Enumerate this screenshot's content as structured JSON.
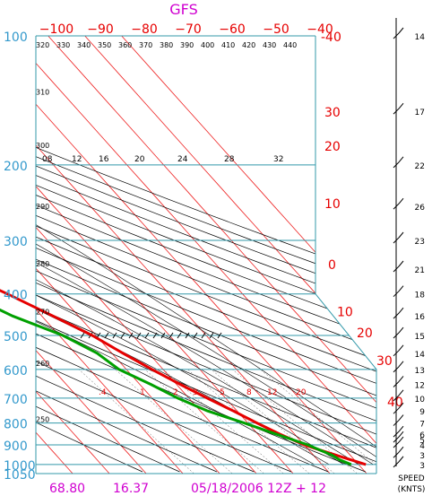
{
  "chart_data": {
    "type": "line",
    "title": "GFS",
    "top_temp_labels": [
      "−100",
      "−90",
      "−80",
      "−70",
      "−60",
      "−50",
      "−40"
    ],
    "top_temp_values": [
      -100,
      -90,
      -80,
      -70,
      -60,
      -50,
      -40
    ],
    "pressure_levels": [
      100,
      200,
      300,
      400,
      500,
      600,
      700,
      800,
      900,
      1000,
      1050
    ],
    "pressure_labels": [
      "100",
      "200",
      "300",
      "400",
      "500",
      "600",
      "700",
      "800",
      "900",
      "1000",
      "1050"
    ],
    "right_temp_labels": [
      {
        "text": "-40",
        "p": 100
      },
      {
        "text": "30",
        "p": 150
      },
      {
        "text": "20",
        "p": 180
      },
      {
        "text": "10",
        "p": 245
      },
      {
        "text": "0",
        "p": 340
      },
      {
        "text": "10",
        "p": 438
      },
      {
        "text": "20",
        "p": 490
      },
      {
        "text": "30",
        "p": 570
      },
      {
        "text": "40",
        "p": 710
      }
    ],
    "theta_labels": [
      {
        "text": "320",
        "p": 105
      },
      {
        "text": "330",
        "p": 105
      },
      {
        "text": "340",
        "p": 105
      },
      {
        "text": "350",
        "p": 105
      },
      {
        "text": "360",
        "p": 105
      },
      {
        "text": "370",
        "p": 105
      },
      {
        "text": "380",
        "p": 105
      },
      {
        "text": "390",
        "p": 105
      },
      {
        "text": "400",
        "p": 105
      },
      {
        "text": "410",
        "p": 105
      },
      {
        "text": "420",
        "p": 105
      },
      {
        "text": "430",
        "p": 105
      },
      {
        "text": "440",
        "p": 105
      }
    ],
    "theta_left_labels": [
      {
        "text": "310",
        "p": 135
      },
      {
        "text": "300",
        "p": 180
      },
      {
        "text": "290",
        "p": 250
      },
      {
        "text": "280",
        "p": 340
      },
      {
        "text": "270",
        "p": 440
      },
      {
        "text": "260",
        "p": 580
      },
      {
        "text": "250",
        "p": 785
      }
    ],
    "theta_e_labels": [
      "08",
      "12",
      "16",
      "20",
      "24",
      "28",
      "32"
    ],
    "mixing_ratio_labels": [
      ".4",
      "1",
      "2",
      "3",
      "5",
      "8",
      "12",
      "20"
    ],
    "temperature": {
      "name": "Temperature",
      "color": "#e60000",
      "p": [
        1000,
        975,
        950,
        925,
        900,
        850,
        800,
        750,
        700,
        650,
        600,
        550,
        500,
        450,
        400,
        370,
        340,
        320,
        300,
        280,
        260,
        240,
        220,
        200,
        180,
        160,
        140,
        120,
        100
      ],
      "t": [
        22,
        19,
        16,
        13,
        10,
        6,
        2.5,
        -1,
        -5,
        -9,
        -13,
        -17,
        -21,
        -27,
        -34,
        -39,
        -44,
        -48,
        -50,
        -51,
        -53,
        -54,
        -55,
        -57,
        -58,
        -60,
        -62,
        -63,
        -64
      ]
    },
    "dewpoint": {
      "name": "Dewpoint",
      "color": "#00a000",
      "p": [
        1000,
        975,
        950,
        925,
        900,
        850,
        800,
        750,
        700,
        650,
        600,
        550,
        500,
        450,
        400,
        350,
        320,
        300,
        280,
        260,
        240,
        220,
        200
      ],
      "t": [
        18,
        16,
        15,
        13,
        11,
        5,
        -1,
        -8,
        -13,
        -17,
        -22,
        -24,
        -29,
        -38,
        -45,
        -53,
        -58,
        -60,
        -62,
        -65,
        -68,
        -72,
        -76
      ]
    },
    "wind_speed_labels": [
      "14",
      "17",
      "22",
      "26",
      "23",
      "21",
      "18",
      "16",
      "15",
      "14",
      "13",
      "12",
      "10",
      "9",
      "7",
      "6",
      "5",
      "4",
      "3",
      "3"
    ],
    "wind_label_pressures": [
      100,
      150,
      200,
      250,
      300,
      350,
      400,
      450,
      500,
      550,
      600,
      650,
      700,
      750,
      800,
      850,
      875,
      900,
      950,
      1000
    ],
    "speed_title": "SPEED",
    "speed_units": "(KNTS)",
    "footer": {
      "index1": "68.80",
      "index2": "16.37",
      "valid": "05/18/2006 12Z + 12"
    },
    "xlim": [
      -40,
      60
    ],
    "ylim": [
      1050,
      100
    ],
    "y_scale": "log",
    "grid": true
  }
}
